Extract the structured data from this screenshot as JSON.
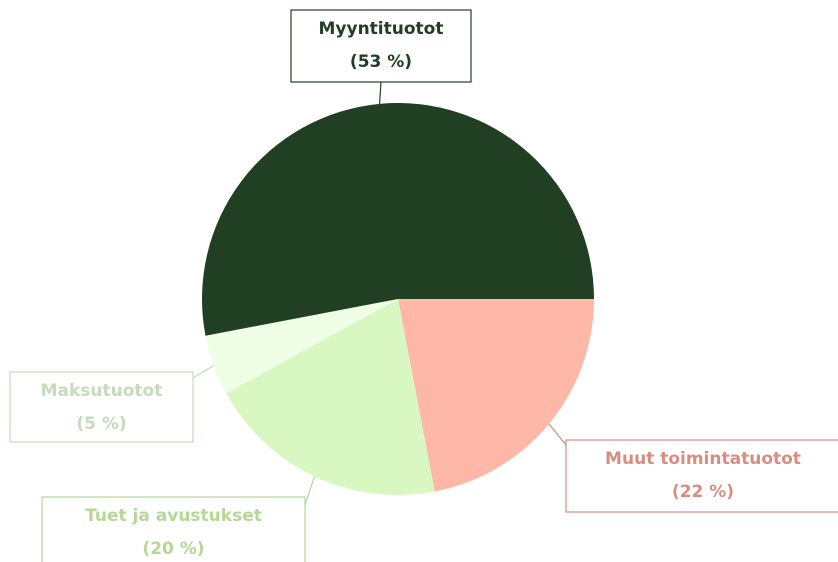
{
  "chart_data": {
    "type": "pie",
    "categories": [
      "Muut toimintatuotot",
      "Tuet ja avustukset",
      "Maksutuotot",
      "Myyntituotot"
    ],
    "values": [
      22,
      20,
      5,
      53
    ],
    "value_labels": [
      "(22 %)",
      "(20 %)",
      "(5 %)",
      "(53 %)"
    ],
    "colors": [
      "#ffb8a8",
      "#d9f7c0",
      "#efffe6",
      "#213f22"
    ],
    "label_colors": [
      "#d48f80",
      "#b5d896",
      "#c5dbbb",
      "#213f22"
    ]
  }
}
